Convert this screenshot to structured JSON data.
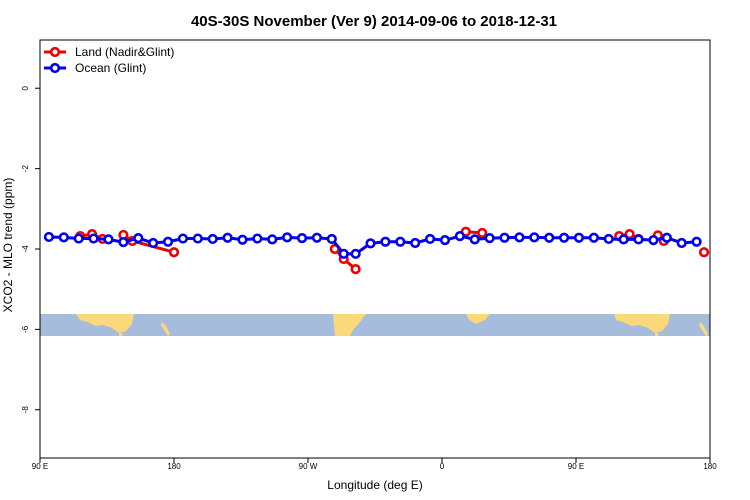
{
  "chart_data": {
    "type": "line",
    "title": "40S-30S November (Ver 9)   2014-09-06 to 2018-12-31",
    "xlabel": "Longitude (deg E)",
    "ylabel": "XCO2 - MLO trend (ppm)",
    "xlim": [
      90,
      540
    ],
    "ylim": [
      -9.2,
      1.2
    ],
    "x_ticks": [
      {
        "value": 90,
        "label": "90 E"
      },
      {
        "value": 180,
        "label": "180"
      },
      {
        "value": 270,
        "label": "90 W"
      },
      {
        "value": 360,
        "label": "0"
      },
      {
        "value": 450,
        "label": "90 E"
      },
      {
        "value": 540,
        "label": "180"
      }
    ],
    "y_ticks": [
      {
        "value": 0,
        "label": "0"
      },
      {
        "value": -2,
        "label": "-2"
      },
      {
        "value": -4,
        "label": "-4"
      },
      {
        "value": -6,
        "label": "-6"
      },
      {
        "value": -8,
        "label": "-8"
      }
    ],
    "map_band": {
      "ymin": -5.95,
      "ymax": -5.4,
      "ocean_color": "#a5bcdc",
      "land_color": "#fbd879"
    },
    "legend_position": "top-left",
    "grid": false,
    "series": [
      {
        "name": "Land (Nadir&Glint)",
        "color": "#ee0000",
        "points": [],
        "segments": [
          [
            [
              117,
              -3.68
            ],
            [
              125,
              -3.63
            ],
            [
              132,
              -3.75
            ]
          ],
          [
            [
              146,
              -3.65
            ],
            [
              152,
              -3.8
            ],
            [
              180,
              -4.08
            ]
          ],
          [
            [
              288,
              -4.0
            ],
            [
              294,
              -4.25
            ],
            [
              302,
              -4.5
            ]
          ],
          [
            [
              376,
              -3.57
            ],
            [
              387,
              -3.6
            ]
          ],
          [
            [
              479,
              -3.68
            ],
            [
              486,
              -3.63
            ],
            [
              492,
              -3.75
            ]
          ],
          [
            [
              505,
              -3.66
            ],
            [
              509,
              -3.8
            ]
          ],
          [
            [
              536,
              -4.08
            ]
          ]
        ]
      },
      {
        "name": "Ocean (Glint)",
        "color": "#0000ee",
        "points": [
          [
            96,
            -3.7
          ],
          [
            106,
            -3.71
          ],
          [
            116,
            -3.74
          ],
          [
            126,
            -3.74
          ],
          [
            136,
            -3.76
          ],
          [
            146,
            -3.83
          ],
          [
            156,
            -3.73
          ],
          [
            166,
            -3.85
          ],
          [
            176,
            -3.82
          ],
          [
            186,
            -3.74
          ],
          [
            196,
            -3.74
          ],
          [
            206,
            -3.75
          ],
          [
            216,
            -3.72
          ],
          [
            226,
            -3.77
          ],
          [
            236,
            -3.74
          ],
          [
            246,
            -3.76
          ],
          [
            256,
            -3.71
          ],
          [
            266,
            -3.73
          ],
          [
            276,
            -3.72
          ],
          [
            286,
            -3.75
          ],
          [
            294,
            -4.12
          ],
          [
            302,
            -4.12
          ],
          [
            312,
            -3.86
          ],
          [
            322,
            -3.82
          ],
          [
            332,
            -3.82
          ],
          [
            342,
            -3.85
          ],
          [
            352,
            -3.75
          ],
          [
            362,
            -3.78
          ],
          [
            372,
            -3.68
          ],
          [
            382,
            -3.76
          ],
          [
            392,
            -3.73
          ],
          [
            402,
            -3.72
          ],
          [
            412,
            -3.71
          ],
          [
            422,
            -3.71
          ],
          [
            432,
            -3.72
          ],
          [
            442,
            -3.72
          ],
          [
            452,
            -3.72
          ],
          [
            462,
            -3.72
          ],
          [
            472,
            -3.75
          ],
          [
            482,
            -3.76
          ],
          [
            492,
            -3.76
          ],
          [
            502,
            -3.78
          ],
          [
            511,
            -3.72
          ],
          [
            521,
            -3.85
          ],
          [
            531,
            -3.82
          ]
        ]
      }
    ]
  }
}
